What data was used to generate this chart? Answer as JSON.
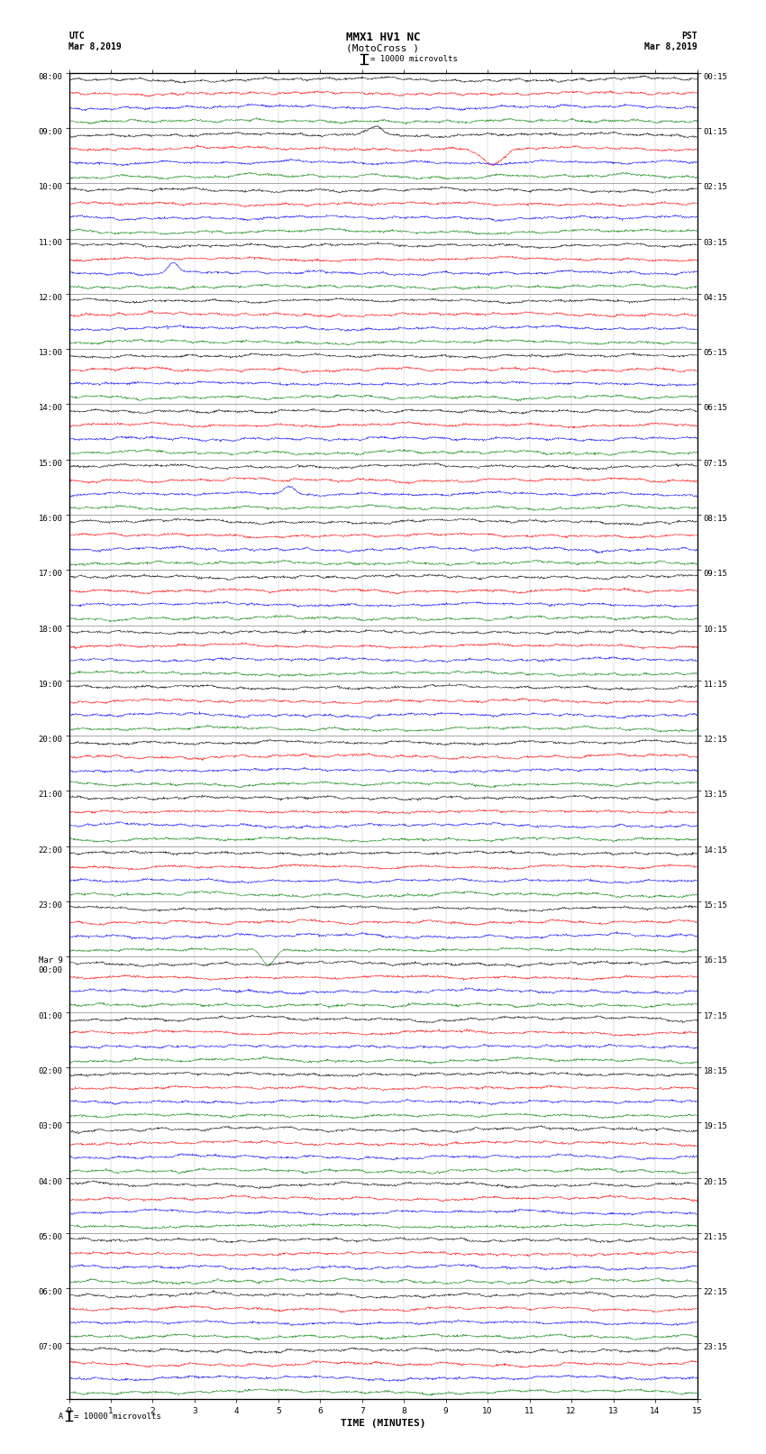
{
  "title_line1": "MMX1 HV1 NC",
  "title_line2": "(MotoCross )",
  "scale_label": "= 10000 microvolts",
  "utc_label": "UTC",
  "utc_date": "Mar 8,2019",
  "pst_label": "PST",
  "pst_date": "Mar 8,2019",
  "xlabel": "TIME (MINUTES)",
  "footer_label": "= 10000 microvolts",
  "left_times": [
    "08:00",
    "09:00",
    "10:00",
    "11:00",
    "12:00",
    "13:00",
    "14:00",
    "15:00",
    "16:00",
    "17:00",
    "18:00",
    "19:00",
    "20:00",
    "21:00",
    "22:00",
    "23:00",
    "Mar 9\n00:00",
    "01:00",
    "02:00",
    "03:00",
    "04:00",
    "05:00",
    "06:00",
    "07:00"
  ],
  "right_times": [
    "00:15",
    "01:15",
    "02:15",
    "03:15",
    "04:15",
    "05:15",
    "06:15",
    "07:15",
    "08:15",
    "09:15",
    "10:15",
    "11:15",
    "12:15",
    "13:15",
    "14:15",
    "15:15",
    "16:15",
    "17:15",
    "18:15",
    "19:15",
    "20:15",
    "21:15",
    "22:15",
    "23:15"
  ],
  "trace_colors": [
    "black",
    "red",
    "blue",
    "green"
  ],
  "num_groups": 24,
  "traces_per_group": 4,
  "noise_amplitude": 0.12,
  "background_color": "white",
  "trace_linewidth": 0.35,
  "title_fontsize": 9,
  "label_fontsize": 7,
  "tick_fontsize": 6.5,
  "xmin": 0,
  "xmax": 15,
  "xticks": [
    0,
    1,
    2,
    3,
    4,
    5,
    6,
    7,
    8,
    9,
    10,
    11,
    12,
    13,
    14,
    15
  ]
}
